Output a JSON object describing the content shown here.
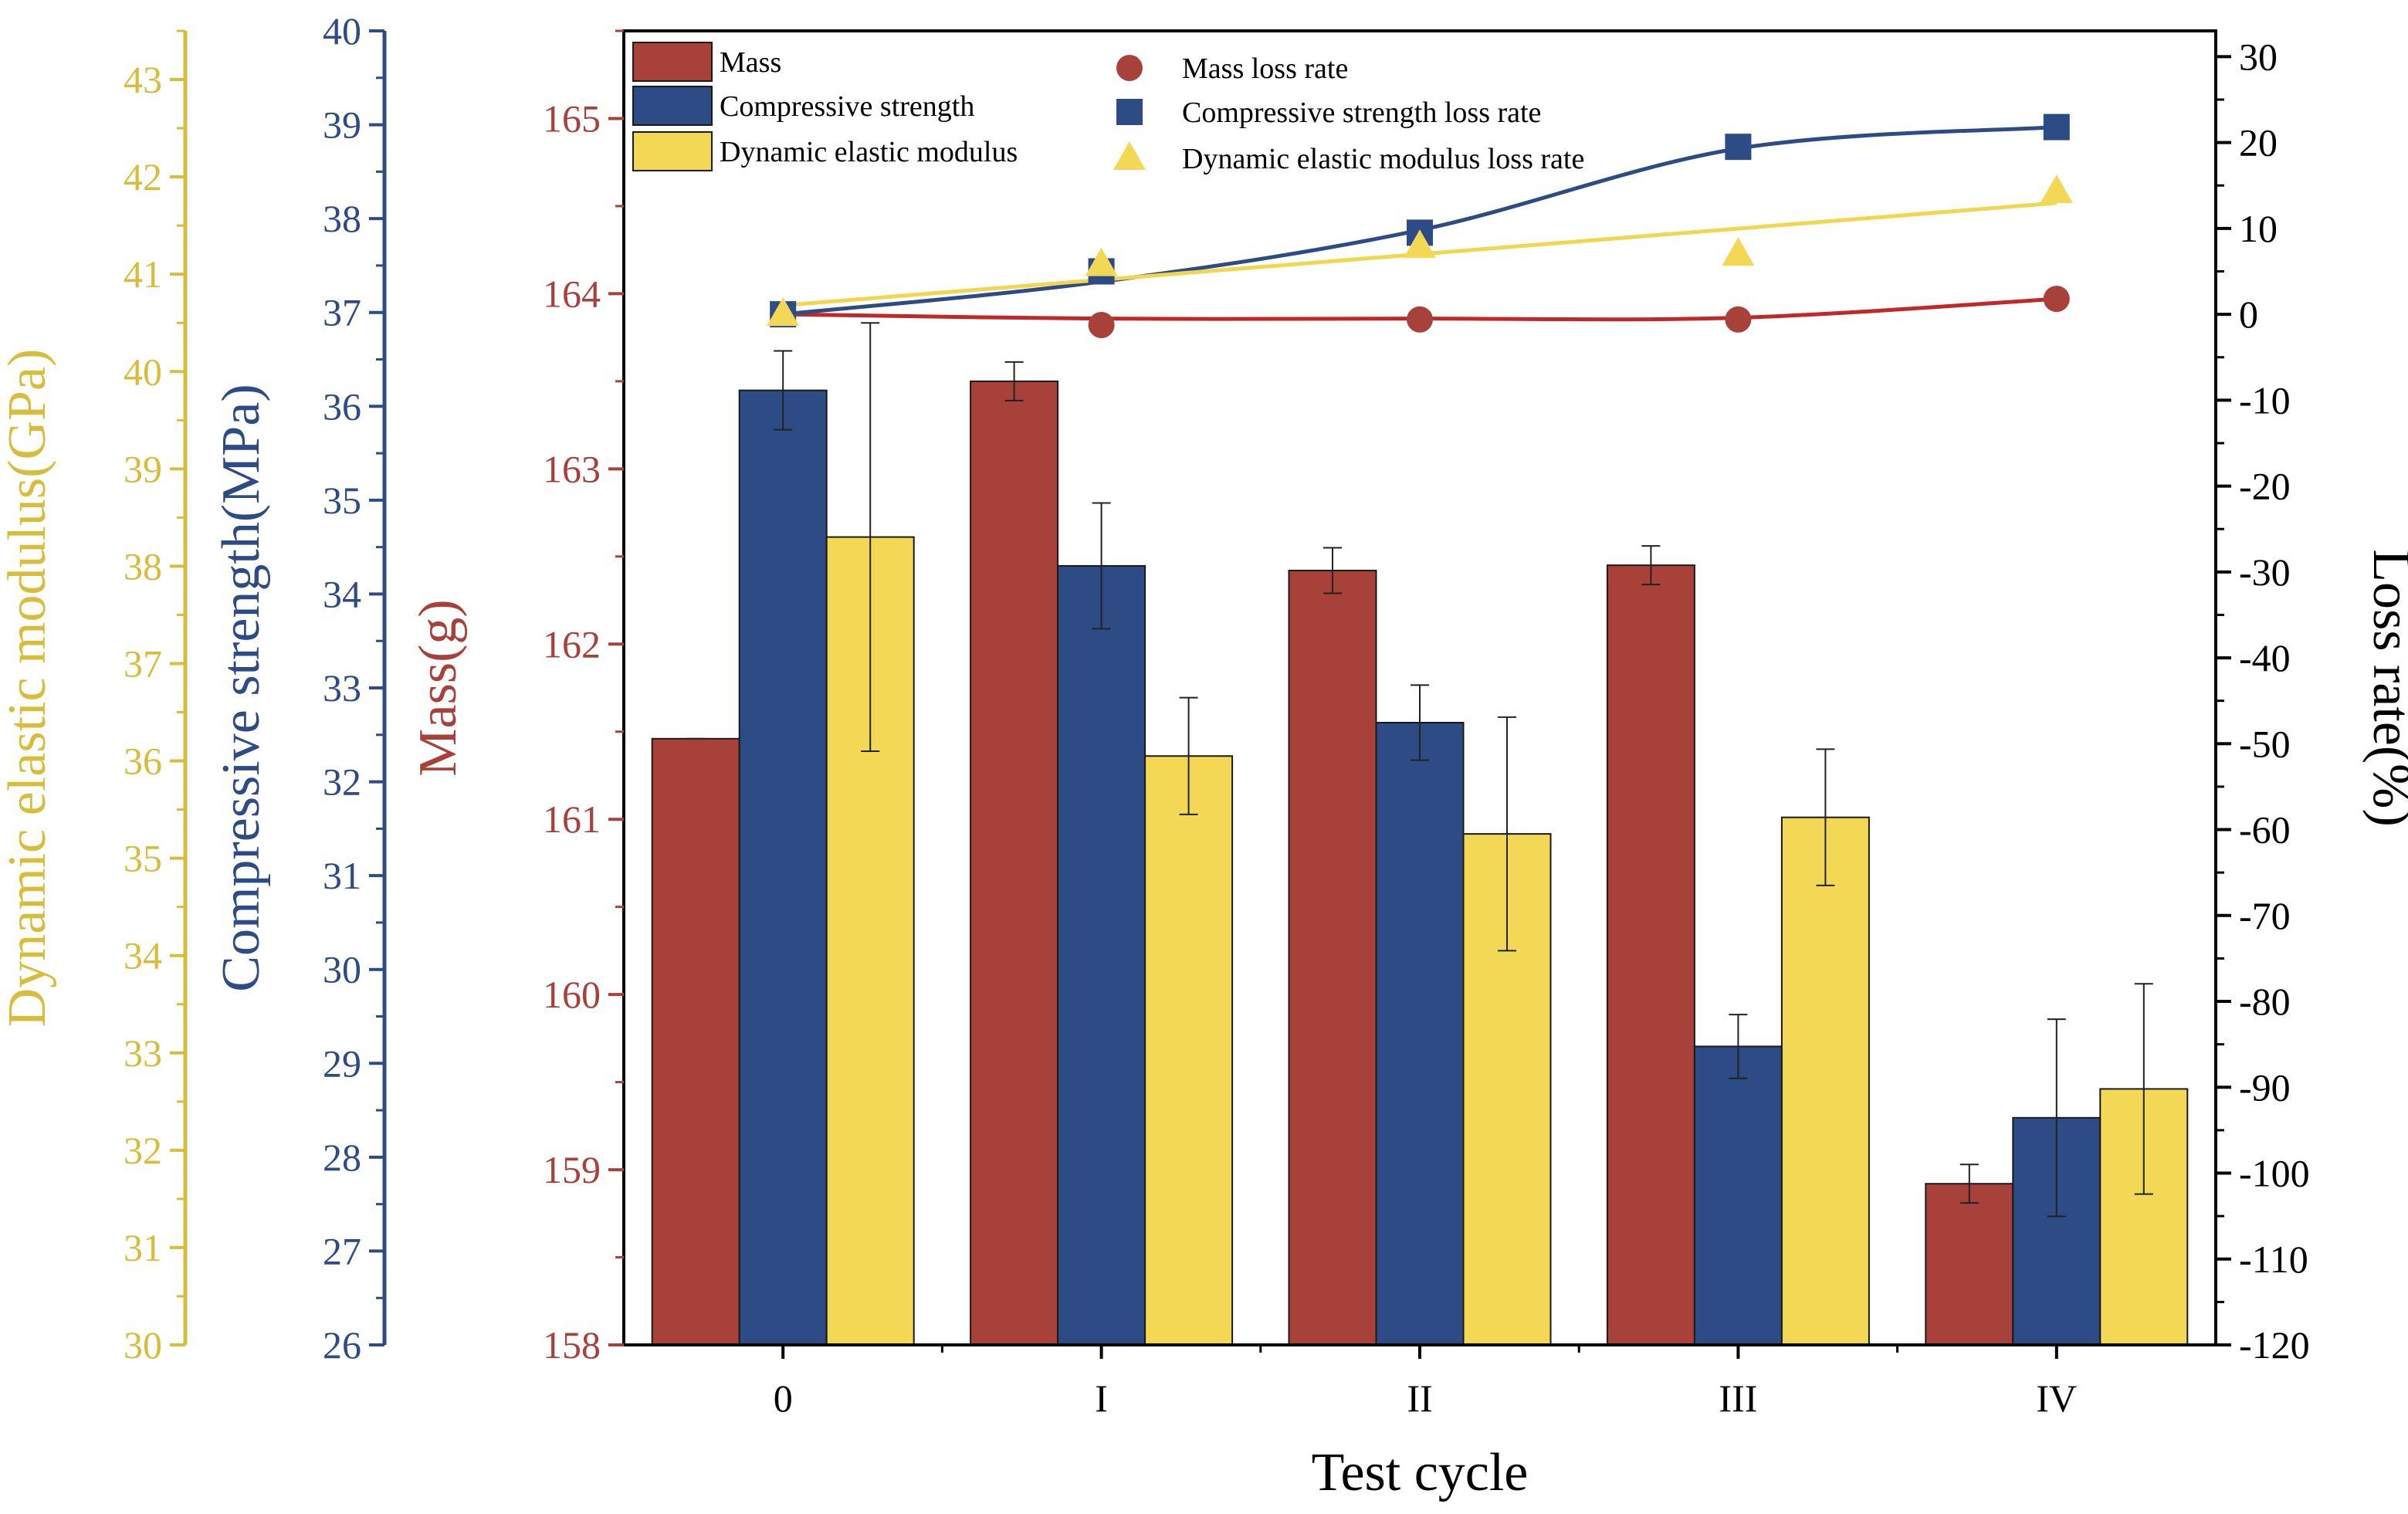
{
  "chart_data": {
    "type": "bar",
    "xlabel": "Test cycle",
    "categories": [
      "0",
      "I",
      "II",
      "III",
      "IV"
    ],
    "axes": {
      "mass": {
        "label": "Mass(g)",
        "range": [
          158,
          165.5
        ],
        "ticks": [
          "158",
          "159",
          "160",
          "161",
          "162",
          "163",
          "164",
          "165"
        ],
        "color": "#a8413a"
      },
      "compressive": {
        "label": "Compressive strength(MPa)",
        "range": [
          26,
          40
        ],
        "ticks": [
          "26",
          "27",
          "28",
          "29",
          "30",
          "31",
          "32",
          "33",
          "34",
          "35",
          "36",
          "37",
          "38",
          "39",
          "40"
        ],
        "color": "#2d4b85"
      },
      "modulus": {
        "label": "Dynamic elastic modulus(GPa)",
        "range": [
          30,
          43.5
        ],
        "ticks": [
          "30",
          "31",
          "32",
          "33",
          "34",
          "35",
          "36",
          "37",
          "38",
          "39",
          "40",
          "41",
          "42",
          "43"
        ],
        "color": "#d8bd3d"
      },
      "loss": {
        "label": "Loss rate(%)",
        "range": [
          -120,
          33
        ],
        "ticks": [
          "-120",
          "-110",
          "-100",
          "-90",
          "-80",
          "-70",
          "-60",
          "-50",
          "-40",
          "-30",
          "-20",
          "-10",
          "0",
          "10",
          "20",
          "30"
        ],
        "color": "#000000"
      }
    },
    "bar_series": [
      {
        "name": "Mass",
        "axis": "mass",
        "color": "#a8413a",
        "values": [
          161.46,
          163.5,
          162.42,
          162.45,
          158.92
        ],
        "errors": [
          0.0,
          0.11,
          0.13,
          0.11,
          0.11
        ]
      },
      {
        "name": "Compressive strength",
        "axis": "compressive",
        "color": "#2d4b85",
        "values": [
          36.17,
          34.3,
          32.63,
          29.18,
          28.42
        ],
        "errors": [
          0.42,
          0.67,
          0.4,
          0.34,
          1.05
        ]
      },
      {
        "name": "Dynamic elastic modulus",
        "axis": "modulus",
        "color": "#f3d856",
        "values": [
          38.3,
          36.05,
          35.25,
          35.42,
          32.63
        ],
        "errors": [
          2.2,
          0.6,
          1.2,
          0.7,
          1.08
        ]
      }
    ],
    "line_series": [
      {
        "name": "Mass loss rate",
        "axis": "loss",
        "marker": "circle",
        "color": "#a8413a",
        "values": [
          0.0,
          -1.25,
          -0.6,
          -0.6,
          1.8
        ]
      },
      {
        "name": "Compressive strength loss rate",
        "axis": "loss",
        "marker": "square",
        "color": "#2d4b85",
        "values": [
          0.0,
          5.0,
          9.5,
          19.5,
          21.8
        ]
      },
      {
        "name": "Dynamic elastic modulus loss rate",
        "axis": "loss",
        "marker": "triangle",
        "color": "#f3d856",
        "values": [
          0.0,
          5.8,
          7.9,
          7.0,
          14.3
        ]
      }
    ],
    "fit_lines": [
      {
        "series": "Mass loss rate",
        "kind": "smooth",
        "color": "#c0282a"
      },
      {
        "series": "Compressive strength loss rate",
        "kind": "smooth",
        "color": "#2d4b85"
      },
      {
        "series": "Dynamic elastic modulus loss rate",
        "kind": "linear",
        "color": "#f1d64f"
      }
    ]
  }
}
